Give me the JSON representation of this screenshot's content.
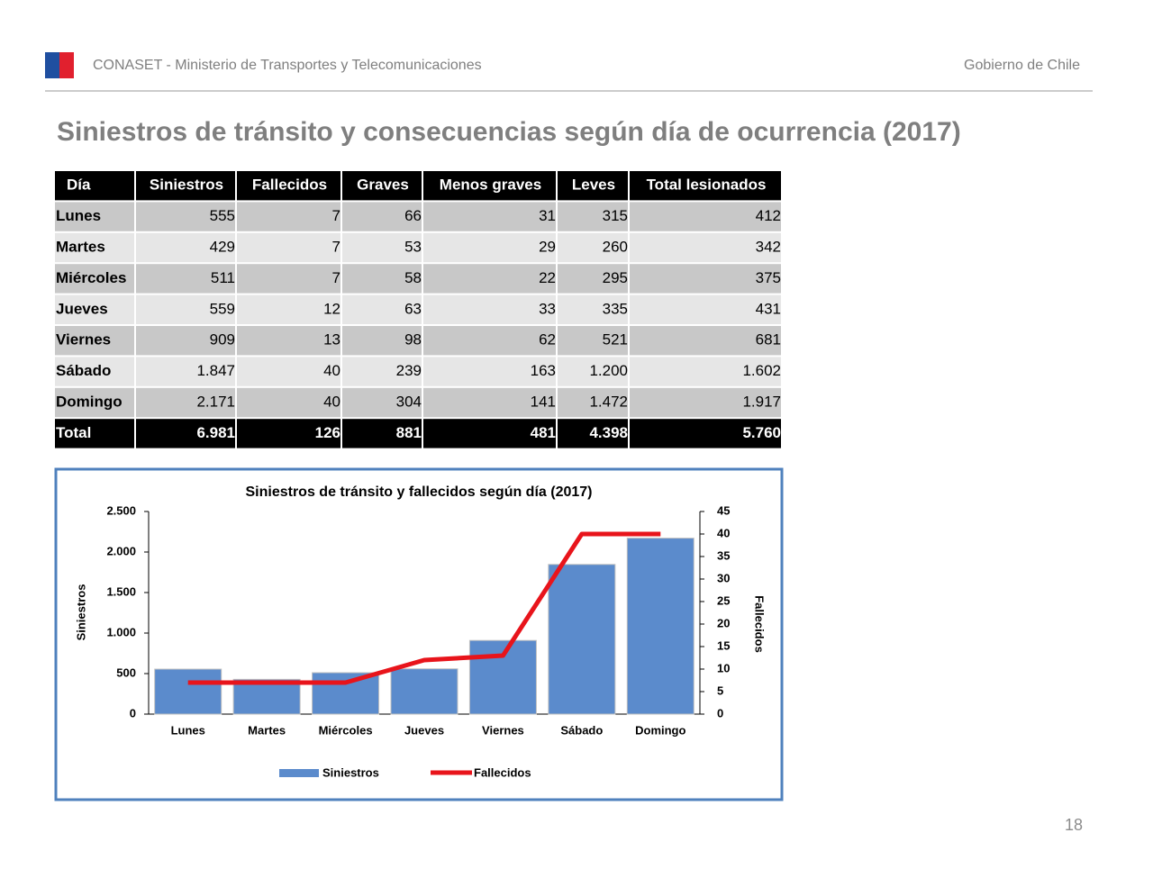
{
  "header": {
    "organization": "CONASET - Ministerio de Transportes y Telecomunicaciones",
    "government": "Gobierno de Chile"
  },
  "title": "Siniestros de tránsito y consecuencias según día de ocurrencia (2017)",
  "table": {
    "columns": [
      "Día",
      "Siniestros",
      "Fallecidos",
      "Graves",
      "Menos graves",
      "Leves",
      "Total lesionados"
    ],
    "rows": [
      [
        "Lunes",
        "555",
        "7",
        "66",
        "31",
        "315",
        "412"
      ],
      [
        "Martes",
        "429",
        "7",
        "53",
        "29",
        "260",
        "342"
      ],
      [
        "Miércoles",
        "511",
        "7",
        "58",
        "22",
        "295",
        "375"
      ],
      [
        "Jueves",
        "559",
        "12",
        "63",
        "33",
        "335",
        "431"
      ],
      [
        "Viernes",
        "909",
        "13",
        "98",
        "62",
        "521",
        "681"
      ],
      [
        "Sábado",
        "1.847",
        "40",
        "239",
        "163",
        "1.200",
        "1.602"
      ],
      [
        "Domingo",
        "2.171",
        "40",
        "304",
        "141",
        "1.472",
        "1.917"
      ]
    ],
    "total": [
      "Total",
      "6.981",
      "126",
      "881",
      "481",
      "4.398",
      "5.760"
    ]
  },
  "chart_data": {
    "type": "bar",
    "title": "Siniestros de tránsito y fallecidos según día (2017)",
    "categories": [
      "Lunes",
      "Martes",
      "Miércoles",
      "Jueves",
      "Viernes",
      "Sábado",
      "Domingo"
    ],
    "series": [
      {
        "name": "Siniestros",
        "type": "bar",
        "color": "#5b8bcc",
        "values": [
          555,
          429,
          511,
          559,
          909,
          1847,
          2171
        ]
      },
      {
        "name": "Fallecidos",
        "type": "line",
        "axis": "y2",
        "color": "#e8141b",
        "values": [
          7,
          7,
          7,
          12,
          13,
          40,
          40
        ]
      }
    ],
    "ylabel": "Siniestros",
    "y2label": "Fallecidos",
    "ylim": [
      0,
      2500
    ],
    "yticks": [
      0,
      500,
      {
        "value": 1000,
        "label": "1.000"
      },
      {
        "value": 1500,
        "label": "1.500"
      },
      {
        "value": 2000,
        "label": "2.000"
      },
      {
        "value": 2500,
        "label": "2.500"
      }
    ],
    "y2lim": [
      0,
      45
    ],
    "y2ticks": [
      0,
      5,
      10,
      15,
      20,
      25,
      30,
      35,
      40,
      45
    ],
    "legend": "bottom",
    "grid": false
  },
  "page_number": "18"
}
